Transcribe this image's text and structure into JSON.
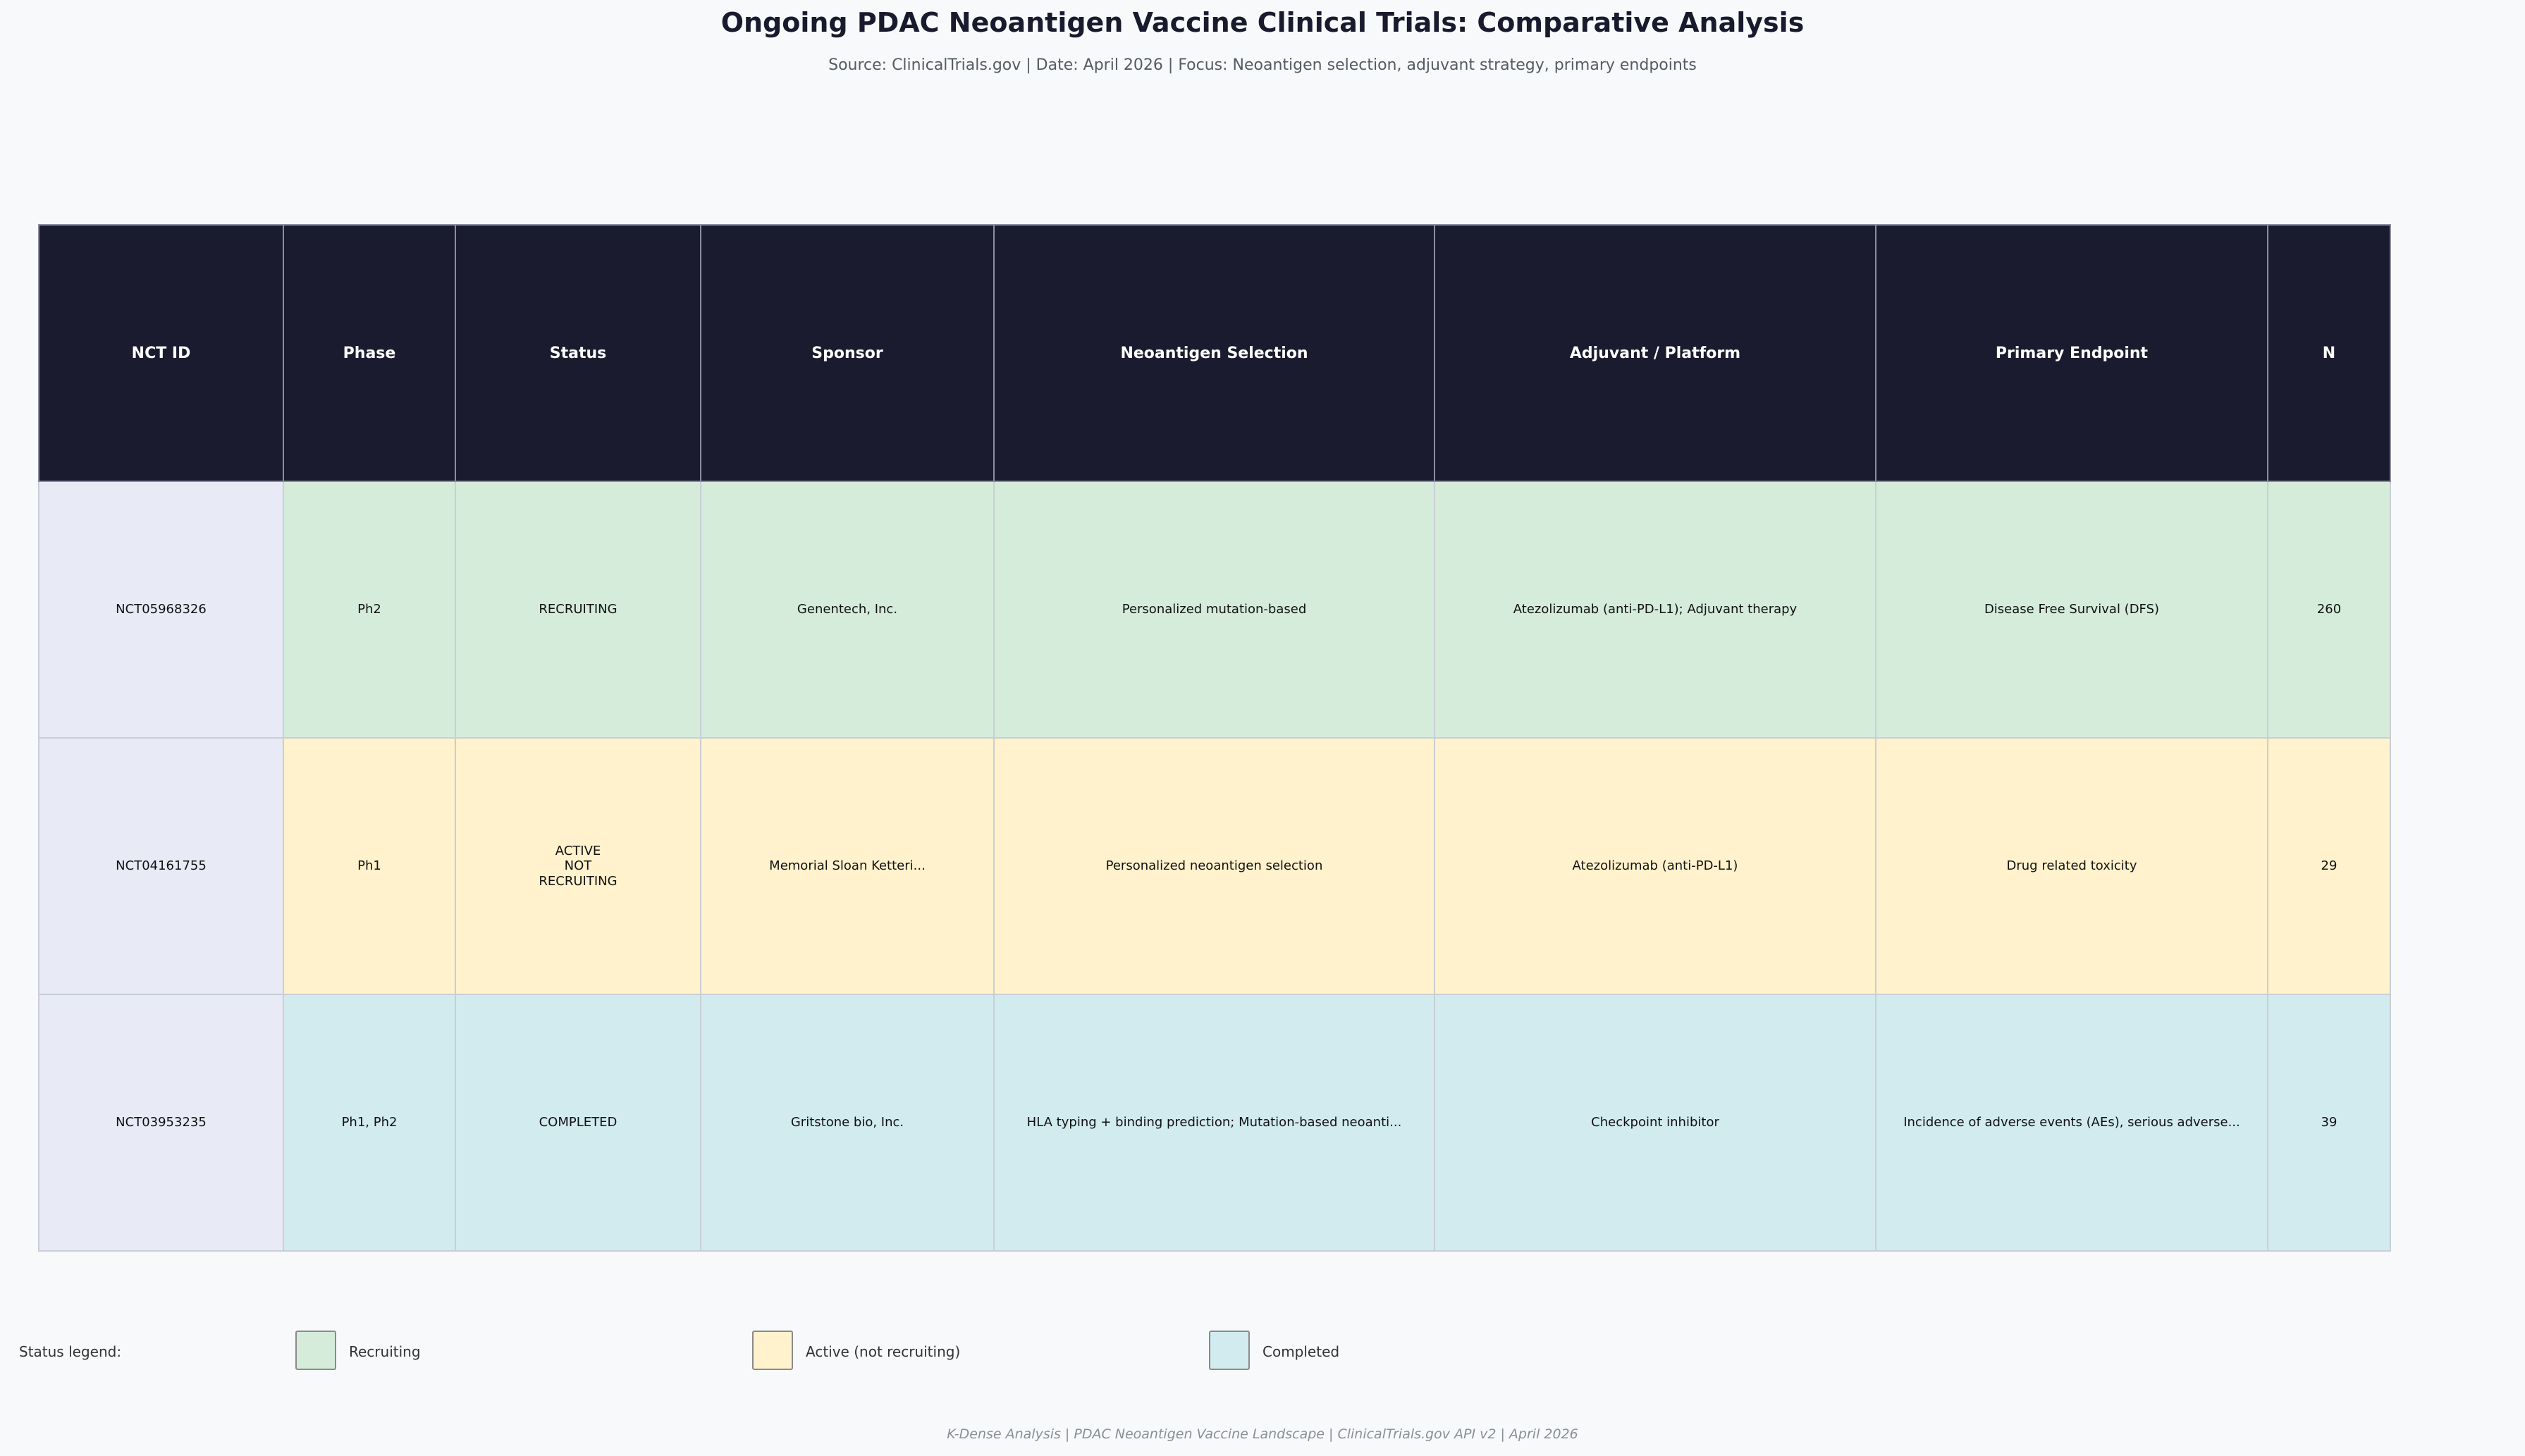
{
  "title": "Ongoing PDAC Neoantigen Vaccine Clinical Trials: Comparative Analysis",
  "subtitle": "Source: ClinicalTrials.gov | Date: April 2026 | Focus: Neoantigen selection, adjuvant strategy, primary endpoints",
  "chart_data": {
    "type": "table",
    "columns": [
      "NCT ID",
      "Phase",
      "Status",
      "Sponsor",
      "Neoantigen Selection",
      "Adjuvant / Platform",
      "Primary Endpoint",
      "N"
    ],
    "rows": [
      {
        "status_key": "recruiting",
        "cells": [
          "NCT05968326",
          "Ph2",
          "RECRUITING",
          "Genentech, Inc.",
          "Personalized mutation-based",
          "Atezolizumab (anti-PD-L1); Adjuvant therapy",
          "Disease Free Survival (DFS)",
          "260"
        ]
      },
      {
        "status_key": "active",
        "cells": [
          "NCT04161755",
          "Ph1",
          "ACTIVE\nNOT\nRECRUITING",
          "Memorial Sloan Ketteri...",
          "Personalized neoantigen selection",
          "Atezolizumab (anti-PD-L1)",
          "Drug related toxicity",
          "29"
        ]
      },
      {
        "status_key": "completed",
        "cells": [
          "NCT03953235",
          "Ph1, Ph2",
          "COMPLETED",
          "Gritstone bio, Inc.",
          "HLA typing + binding prediction; Mutation-based neoanti...",
          "Checkpoint inhibitor",
          "Incidence of adverse events (AEs), serious adverse...",
          "39"
        ]
      }
    ]
  },
  "legend": {
    "label": "Status legend:",
    "items": [
      {
        "key": "recruiting",
        "label": "Recruiting",
        "color": "#d5ecdb"
      },
      {
        "key": "active",
        "label": "Active (not recruiting)",
        "color": "#fff2cc"
      },
      {
        "key": "completed",
        "label": "Completed",
        "color": "#d2ebef"
      }
    ]
  },
  "colors": {
    "header_bg": "#1b1b2f",
    "id_column_bg": "#e8eaf6"
  },
  "footer": "K-Dense Analysis | PDAC Neoantigen Vaccine Landscape | ClinicalTrials.gov API v2 | April 2026"
}
